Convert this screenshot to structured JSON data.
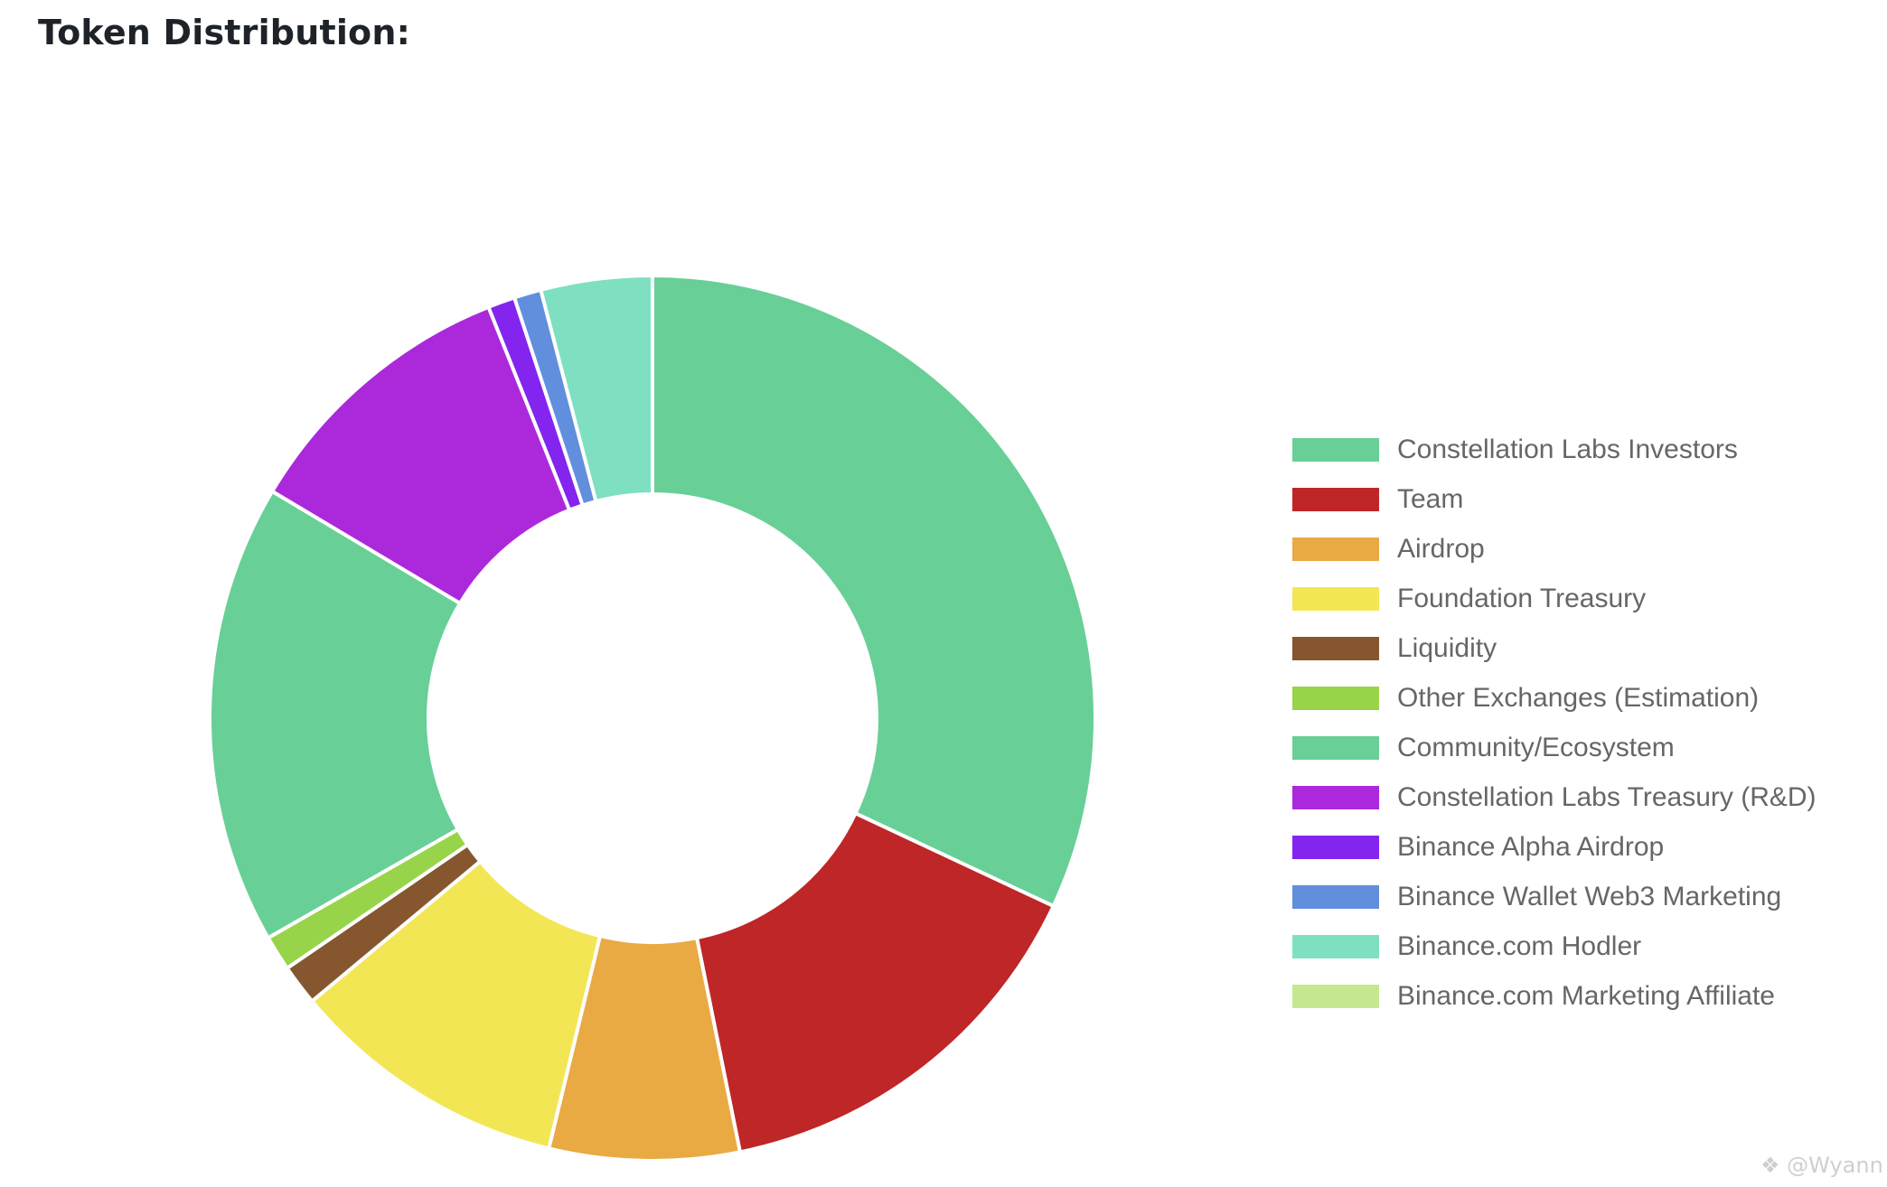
{
  "page": {
    "title": "Token Distribution:",
    "watermark": "@Wyann"
  },
  "chart_data": {
    "type": "pie",
    "style": "donut",
    "legend_position": "right",
    "slices": [
      {
        "label": "Constellation Labs Investors",
        "value": 32.3,
        "color": "#68CF97"
      },
      {
        "label": "Team",
        "value": 15.0,
        "color": "#BF2627"
      },
      {
        "label": "Airdrop",
        "value": 7.0,
        "color": "#E9AA44"
      },
      {
        "label": "Foundation Treasury",
        "value": 10.3,
        "color": "#F3E655"
      },
      {
        "label": "Liquidity",
        "value": 1.5,
        "color": "#86562F"
      },
      {
        "label": "Other Exchanges (Estimation)",
        "value": 1.3,
        "color": "#98D44A"
      },
      {
        "label": "Community/Ecosystem",
        "value": 17.0,
        "color": "#68CF97"
      },
      {
        "label": "Constellation Labs Treasury (R&D)",
        "value": 10.5,
        "color": "#AB29DB"
      },
      {
        "label": "Binance Alpha Airdrop",
        "value": 1.0,
        "color": "#8325EE"
      },
      {
        "label": "Binance Wallet Web3 Marketing",
        "value": 1.0,
        "color": "#628FDD"
      },
      {
        "label": "Binance.com Hodler",
        "value": 4.1,
        "color": "#7EE0C1"
      },
      {
        "label": "Binance.com Marketing Affiliate",
        "value": 0,
        "color": "#C5E88E"
      }
    ]
  }
}
